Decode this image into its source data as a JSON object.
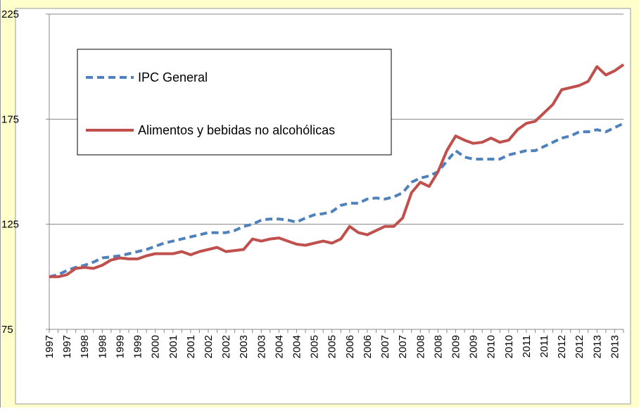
{
  "chart_data": {
    "type": "line",
    "categories": [
      "1997",
      null,
      "1997",
      null,
      "1998",
      null,
      "1998",
      null,
      "1999",
      null,
      "1999",
      null,
      "2000",
      null,
      "2001",
      null,
      "2001",
      null,
      "2002",
      null,
      "2002",
      null,
      "2003",
      null,
      "2003",
      null,
      "2004",
      null,
      "2004",
      null,
      "2005",
      null,
      "2005",
      null,
      "2006",
      null,
      "2006",
      null,
      "2007",
      null,
      "2007",
      null,
      "2008",
      null,
      "2008",
      null,
      "2009",
      null,
      "2009",
      null,
      "2010",
      null,
      "2010",
      null,
      "2011",
      null,
      "2011",
      null,
      "2012",
      null,
      "2012",
      null,
      "2013",
      null,
      "2013",
      null
    ],
    "series": [
      {
        "name": "IPC General",
        "color": "#4f81bd",
        "dash": true,
        "values": [
          100,
          101,
          103,
          104.5,
          105.5,
          107,
          109,
          109.5,
          110,
          111,
          112,
          113,
          114.5,
          116,
          117,
          118,
          119,
          120,
          121,
          121,
          121,
          122,
          124,
          125,
          127,
          127.5,
          127.5,
          127,
          126,
          128,
          129.5,
          130,
          131,
          134,
          135,
          135,
          137,
          137.5,
          137,
          138,
          140,
          145,
          147,
          148,
          150,
          155,
          160,
          157,
          156,
          156,
          156,
          156,
          158,
          159,
          160,
          160,
          162,
          164,
          166,
          167,
          169,
          169,
          170,
          169,
          171,
          173
        ]
      },
      {
        "name": "Alimentos y bebidas no alcohólicas",
        "color": "#c0504d",
        "dash": false,
        "values": [
          100,
          100,
          101,
          104,
          104.5,
          104,
          105.5,
          108,
          109,
          108.5,
          108.5,
          110,
          111,
          111,
          111,
          112,
          110.5,
          112,
          113,
          114,
          112,
          112.5,
          113,
          118,
          117,
          118,
          118.5,
          117,
          115.5,
          115,
          116,
          117,
          116,
          118,
          124,
          121,
          120,
          122,
          124,
          124,
          128,
          140,
          145,
          143,
          150,
          160,
          167,
          165,
          163.5,
          164,
          166,
          164,
          165,
          170,
          173,
          174,
          178,
          182,
          189,
          190,
          191,
          193,
          200,
          196,
          198,
          201
        ]
      }
    ],
    "ylim": [
      75,
      225
    ],
    "yticks": [
      75,
      125,
      175,
      225
    ],
    "grid": true,
    "legend": "upper left"
  }
}
